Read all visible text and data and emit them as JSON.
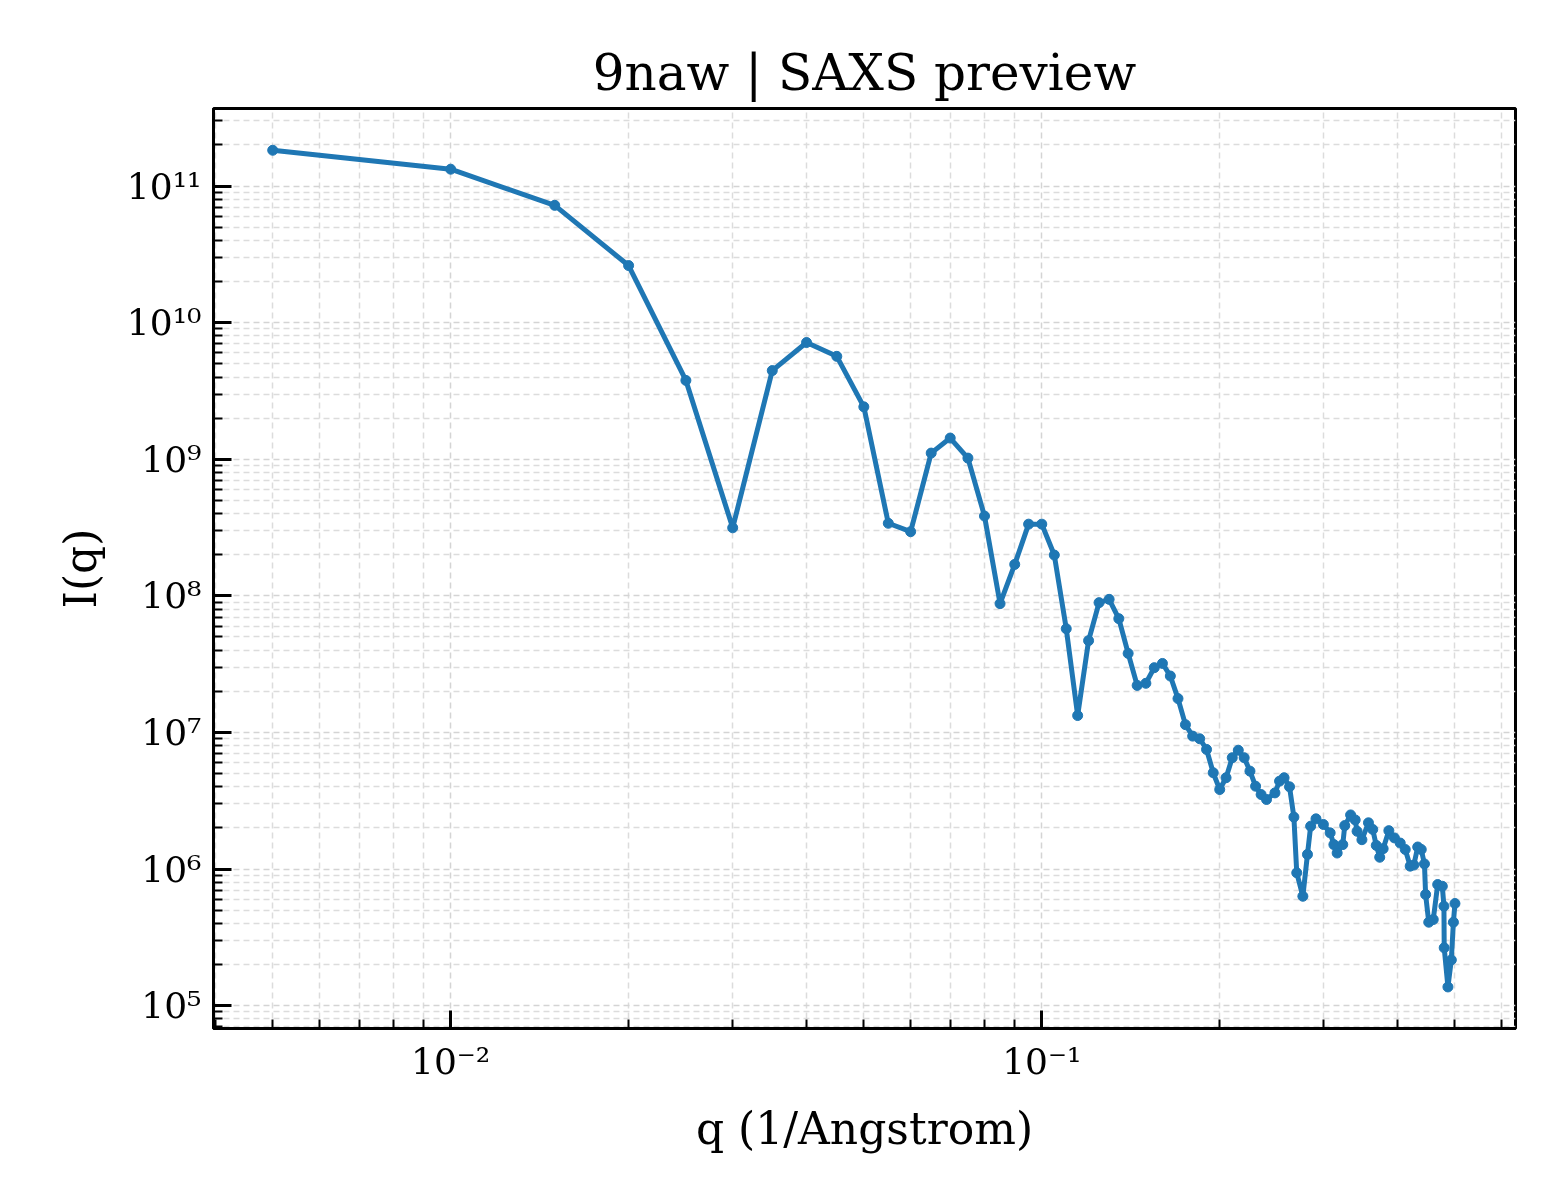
{
  "chart_data": {
    "type": "line",
    "title": "9naw | SAXS preview",
    "xlabel": "q (1/Angstrom)",
    "ylabel": "I(q)",
    "log": "xy",
    "xlim": [
      0.00397,
      0.633
    ],
    "ylim": [
      68000,
      370000000000
    ],
    "xticks": [
      {
        "value": 0.004,
        "label": null
      },
      {
        "value": 0.005,
        "label": null
      },
      {
        "value": 0.006,
        "label": null
      },
      {
        "value": 0.007,
        "label": null
      },
      {
        "value": 0.008,
        "label": null
      },
      {
        "value": 0.009,
        "label": null
      },
      {
        "value": 0.01,
        "label": "10⁻²"
      },
      {
        "value": 0.02,
        "label": null
      },
      {
        "value": 0.03,
        "label": null
      },
      {
        "value": 0.04,
        "label": null
      },
      {
        "value": 0.05,
        "label": null
      },
      {
        "value": 0.06,
        "label": null
      },
      {
        "value": 0.07,
        "label": null
      },
      {
        "value": 0.08,
        "label": null
      },
      {
        "value": 0.09,
        "label": null
      },
      {
        "value": 0.1,
        "label": "10⁻¹"
      },
      {
        "value": 0.2,
        "label": null
      },
      {
        "value": 0.3,
        "label": null
      },
      {
        "value": 0.4,
        "label": null
      },
      {
        "value": 0.5,
        "label": null
      },
      {
        "value": 0.6,
        "label": null
      }
    ],
    "yticks": [
      {
        "value": 70000,
        "label": null
      },
      {
        "value": 80000,
        "label": null
      },
      {
        "value": 90000,
        "label": null
      },
      {
        "value": 100000,
        "label": "10⁵"
      },
      {
        "value": 200000,
        "label": null
      },
      {
        "value": 300000,
        "label": null
      },
      {
        "value": 400000,
        "label": null
      },
      {
        "value": 500000,
        "label": null
      },
      {
        "value": 600000,
        "label": null
      },
      {
        "value": 700000,
        "label": null
      },
      {
        "value": 800000,
        "label": null
      },
      {
        "value": 900000,
        "label": null
      },
      {
        "value": 1000000,
        "label": "10⁶"
      },
      {
        "value": 2000000,
        "label": null
      },
      {
        "value": 3000000,
        "label": null
      },
      {
        "value": 4000000,
        "label": null
      },
      {
        "value": 5000000,
        "label": null
      },
      {
        "value": 6000000,
        "label": null
      },
      {
        "value": 7000000,
        "label": null
      },
      {
        "value": 8000000,
        "label": null
      },
      {
        "value": 9000000,
        "label": null
      },
      {
        "value": 10000000,
        "label": "10⁷"
      },
      {
        "value": 20000000,
        "label": null
      },
      {
        "value": 30000000,
        "label": null
      },
      {
        "value": 40000000,
        "label": null
      },
      {
        "value": 50000000,
        "label": null
      },
      {
        "value": 60000000,
        "label": null
      },
      {
        "value": 70000000,
        "label": null
      },
      {
        "value": 80000000,
        "label": null
      },
      {
        "value": 90000000,
        "label": null
      },
      {
        "value": 100000000,
        "label": "10⁸"
      },
      {
        "value": 200000000,
        "label": null
      },
      {
        "value": 300000000,
        "label": null
      },
      {
        "value": 400000000,
        "label": null
      },
      {
        "value": 500000000,
        "label": null
      },
      {
        "value": 600000000,
        "label": null
      },
      {
        "value": 700000000,
        "label": null
      },
      {
        "value": 800000000,
        "label": null
      },
      {
        "value": 900000000,
        "label": null
      },
      {
        "value": 1000000000,
        "label": "10⁹"
      },
      {
        "value": 2000000000,
        "label": null
      },
      {
        "value": 3000000000,
        "label": null
      },
      {
        "value": 4000000000,
        "label": null
      },
      {
        "value": 5000000000,
        "label": null
      },
      {
        "value": 6000000000,
        "label": null
      },
      {
        "value": 7000000000,
        "label": null
      },
      {
        "value": 8000000000,
        "label": null
      },
      {
        "value": 9000000000,
        "label": null
      },
      {
        "value": 10000000000,
        "label": "10¹⁰"
      },
      {
        "value": 20000000000,
        "label": null
      },
      {
        "value": 30000000000,
        "label": null
      },
      {
        "value": 40000000000,
        "label": null
      },
      {
        "value": 50000000000,
        "label": null
      },
      {
        "value": 60000000000,
        "label": null
      },
      {
        "value": 70000000000,
        "label": null
      },
      {
        "value": 80000000000,
        "label": null
      },
      {
        "value": 90000000000,
        "label": null
      },
      {
        "value": 100000000000,
        "label": "10¹¹"
      },
      {
        "value": 200000000000,
        "label": null
      },
      {
        "value": 300000000000,
        "label": null
      }
    ],
    "grid": true,
    "marker": "circle",
    "line_style": "solid",
    "color": "#1f77b4",
    "x": [
      0.005,
      0.01,
      0.015,
      0.02,
      0.025,
      0.03,
      0.035,
      0.04,
      0.045,
      0.05,
      0.055,
      0.06,
      0.065,
      0.07,
      0.075,
      0.08,
      0.085,
      0.09,
      0.095,
      0.1,
      0.105,
      0.11,
      0.115,
      0.12,
      0.125,
      0.13,
      0.135,
      0.14,
      0.145,
      0.15,
      0.155,
      0.16,
      0.165,
      0.17,
      0.175,
      0.18,
      0.185,
      0.19,
      0.195,
      0.2,
      0.205,
      0.21,
      0.215,
      0.22,
      0.225,
      0.23,
      0.235,
      0.24,
      0.248,
      0.2525,
      0.257,
      0.2625,
      0.267,
      0.27,
      0.2765,
      0.2815,
      0.285,
      0.291,
      0.2995,
      0.3075,
      0.312,
      0.316,
      0.323,
      0.3255,
      0.333,
      0.339,
      0.3415,
      0.348,
      0.357,
      0.363,
      0.368,
      0.373,
      0.378,
      0.3865,
      0.395,
      0.404,
      0.412,
      0.42,
      0.426,
      0.4325,
      0.4385,
      0.444,
      0.446,
      0.4515,
      0.4595,
      0.4675,
      0.476,
      0.479,
      0.4795,
      0.4865,
      0.493,
      0.497,
      0.5
    ],
    "values": [
      183000000000.0,
      133000000000.0,
      72300000000.0,
      26200000000.0,
      3780000000.0,
      315000000.0,
      4460000000.0,
      7160000000.0,
      5670000000.0,
      2420000000.0,
      340000000.0,
      295000000.0,
      1110000000.0,
      1430000000.0,
      1020000000.0,
      384000000.0,
      87700000.0,
      170000000.0,
      335000000.0,
      335000000.0,
      199000000.0,
      57500000.0,
      13300000.0,
      47000000.0,
      89200000.0,
      94300000.0,
      68100000.0,
      37900000.0,
      22100000.0,
      22900000.0,
      29800000.0,
      32000000.0,
      25900000.0,
      17700000.0,
      11400000.0,
      9400000.0,
      8990000.0,
      7510000.0,
      5070000.0,
      3820000.0,
      4660000.0,
      6530000.0,
      7410000.0,
      6530000.0,
      5210000.0,
      4040000.0,
      3510000.0,
      3230000.0,
      3610000.0,
      4400000.0,
      4660000.0,
      4000000.0,
      2400000.0,
      938000.0,
      632000.0,
      1280000.0,
      2060000.0,
      2330000.0,
      2120000.0,
      1840000.0,
      1510000.0,
      1310000.0,
      1510000.0,
      2080000.0,
      2490000.0,
      2290000.0,
      1890000.0,
      1640000.0,
      2180000.0,
      1950000.0,
      1490000.0,
      1220000.0,
      1410000.0,
      1910000.0,
      1690000.0,
      1550000.0,
      1390000.0,
      1050000.0,
      1070000.0,
      1450000.0,
      1390000.0,
      1090000.0,
      651000.0,
      408000.0,
      427000.0,
      770000.0,
      748000.0,
      534000.0,
      265000.0,
      137000.0,
      216000.0,
      408000.0,
      559000.0
    ]
  }
}
